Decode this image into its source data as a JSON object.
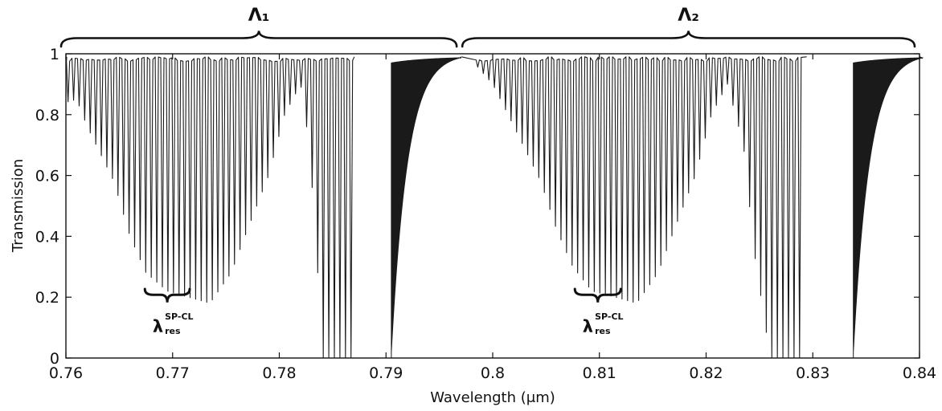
{
  "chart_data": {
    "type": "line",
    "xlabel": "Wavelength (μm)",
    "ylabel": "Transmission",
    "xlim": [
      0.76,
      0.84
    ],
    "ylim": [
      0,
      1
    ],
    "xticks": [
      0.76,
      0.77,
      0.78,
      0.79,
      0.8,
      0.81,
      0.82,
      0.83,
      0.84
    ],
    "xtick_labels": [
      "0.76",
      "0.77",
      "0.78",
      "0.79",
      "0.8",
      "0.81",
      "0.82",
      "0.83",
      "0.84"
    ],
    "yticks": [
      0,
      0.2,
      0.4,
      0.6,
      0.8,
      1
    ],
    "ytick_labels": [
      "0",
      "0.2",
      "0.4",
      "0.6",
      "0.8",
      "1"
    ],
    "grid": false,
    "series_color": "#1a1a1a",
    "periods": [
      {
        "label": "Λ₁",
        "range": [
          0.76,
          0.797
        ],
        "comb_start": 0.7602,
        "comb_spacing": 0.00052,
        "envelope": [
          [
            0.76,
            0.84
          ],
          [
            0.761,
            0.85
          ],
          [
            0.762,
            0.76
          ],
          [
            0.7645,
            0.58
          ],
          [
            0.766,
            0.4
          ],
          [
            0.7675,
            0.28
          ],
          [
            0.7695,
            0.22
          ],
          [
            0.7715,
            0.2
          ],
          [
            0.7735,
            0.18
          ],
          [
            0.7755,
            0.28
          ],
          [
            0.777,
            0.42
          ],
          [
            0.779,
            0.6
          ],
          [
            0.7805,
            0.8
          ],
          [
            0.782,
            0.9
          ],
          [
            0.7828,
            0.7
          ],
          [
            0.7835,
            0.35
          ],
          [
            0.784,
            0.0
          ],
          [
            0.7868,
            0.0
          ]
        ],
        "high_edge": 0.7905,
        "resonance_label_x": 0.7695,
        "resonance_bracket": [
          0.7674,
          0.7716
        ]
      },
      {
        "label": "Λ₂",
        "range": [
          0.797,
          0.84
        ],
        "comb_start": 0.7986,
        "comb_spacing": 0.00052,
        "envelope": [
          [
            0.797,
            0.99
          ],
          [
            0.798,
            0.98
          ],
          [
            0.8,
            0.9
          ],
          [
            0.802,
            0.76
          ],
          [
            0.8045,
            0.58
          ],
          [
            0.806,
            0.42
          ],
          [
            0.8075,
            0.3
          ],
          [
            0.8093,
            0.22
          ],
          [
            0.8115,
            0.2
          ],
          [
            0.8135,
            0.18
          ],
          [
            0.8155,
            0.28
          ],
          [
            0.817,
            0.42
          ],
          [
            0.819,
            0.6
          ],
          [
            0.8205,
            0.8
          ],
          [
            0.822,
            0.9
          ],
          [
            0.8235,
            0.7
          ],
          [
            0.8245,
            0.35
          ],
          [
            0.826,
            0.0
          ],
          [
            0.8292,
            0.0
          ]
        ],
        "high_edge": 0.8338,
        "resonance_label_x": 0.8098,
        "resonance_bracket": [
          0.8077,
          0.812
        ]
      }
    ],
    "annotations": {
      "period_labels": [
        "Λ₁",
        "Λ₂"
      ],
      "resonance_label": {
        "main": "λ",
        "superscript": "SP-CL",
        "subscript": "res"
      }
    }
  }
}
